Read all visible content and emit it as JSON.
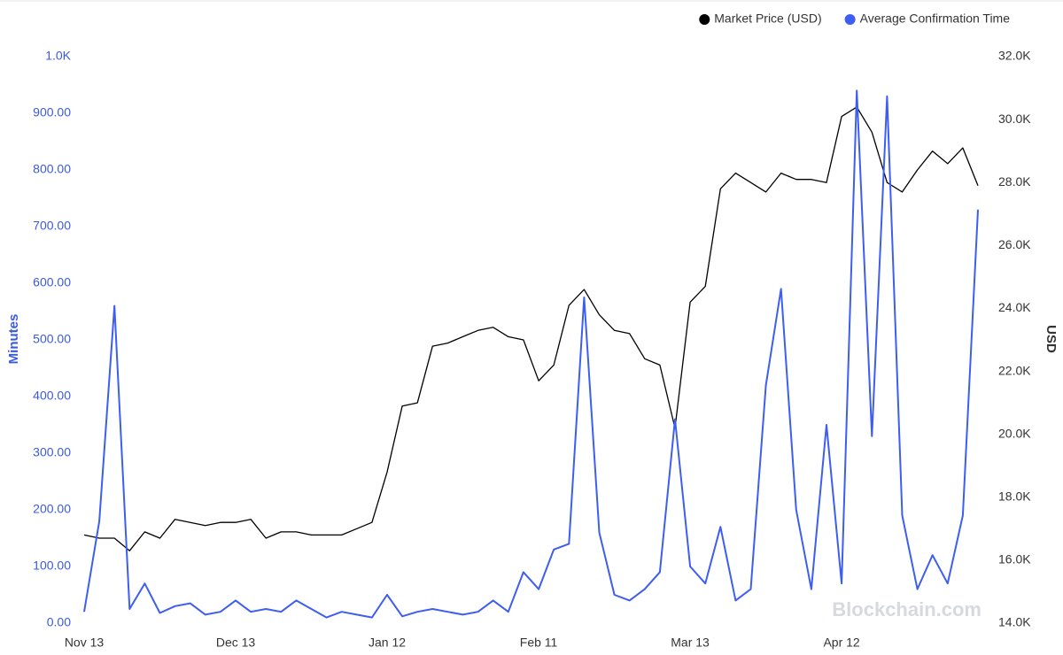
{
  "chart_data": {
    "type": "line",
    "legend": "top-right",
    "ylabel": "Minutes",
    "y2label": "USD",
    "watermark": "Blockchain.com",
    "categories": [
      "Nov 13",
      null,
      null,
      null,
      null,
      null,
      null,
      null,
      null,
      null,
      "Dec 13",
      null,
      null,
      null,
      null,
      null,
      null,
      null,
      null,
      null,
      "Jan 12",
      null,
      null,
      null,
      null,
      null,
      null,
      null,
      null,
      null,
      "Feb 11",
      null,
      null,
      null,
      null,
      null,
      null,
      null,
      null,
      null,
      "Mar 13",
      null,
      null,
      null,
      null,
      null,
      null,
      null,
      null,
      null,
      "Apr 12",
      null,
      null,
      null,
      null,
      null,
      null,
      null,
      null,
      null
    ],
    "ylim": [
      0,
      1000
    ],
    "yticks": [
      {
        "value": 0,
        "label": "0.00"
      },
      {
        "value": 100,
        "label": "100.00"
      },
      {
        "value": 200,
        "label": "200.00"
      },
      {
        "value": 300,
        "label": "300.00"
      },
      {
        "value": 400,
        "label": "400.00"
      },
      {
        "value": 500,
        "label": "500.00"
      },
      {
        "value": 600,
        "label": "600.00"
      },
      {
        "value": 700,
        "label": "700.00"
      },
      {
        "value": 800,
        "label": "800.00"
      },
      {
        "value": 900,
        "label": "900.00"
      },
      {
        "value": 1000,
        "label": "1.0K"
      }
    ],
    "y2lim": [
      14000,
      32000
    ],
    "y2ticks": [
      {
        "value": 14000,
        "label": "14.0K"
      },
      {
        "value": 16000,
        "label": "16.0K"
      },
      {
        "value": 18000,
        "label": "18.0K"
      },
      {
        "value": 20000,
        "label": "20.0K"
      },
      {
        "value": 22000,
        "label": "22.0K"
      },
      {
        "value": 24000,
        "label": "24.0K"
      },
      {
        "value": 26000,
        "label": "26.0K"
      },
      {
        "value": 28000,
        "label": "28.0K"
      },
      {
        "value": 30000,
        "label": "30.0K"
      },
      {
        "value": 32000,
        "label": "32.0K"
      }
    ],
    "series": [
      {
        "name": "Market Price (USD)",
        "color": "#000000",
        "axis": "y2",
        "values": [
          16800,
          16700,
          16700,
          16300,
          16900,
          16700,
          17300,
          17200,
          17100,
          17200,
          17200,
          17300,
          16700,
          16900,
          16900,
          16800,
          16800,
          16800,
          17000,
          17200,
          18800,
          20900,
          21000,
          22800,
          22900,
          23100,
          23300,
          23400,
          23100,
          23000,
          21700,
          22200,
          24100,
          24600,
          23800,
          23300,
          23200,
          22400,
          22200,
          20200,
          24200,
          24700,
          27800,
          28300,
          28000,
          27700,
          28300,
          28100,
          28100,
          28000,
          30100,
          30400,
          29600,
          28000,
          27700,
          28400,
          29000,
          28600,
          29100,
          27900
        ]
      },
      {
        "name": "Average Confirmation Time",
        "color": "#3d5ef0",
        "axis": "y",
        "values": [
          20,
          180,
          560,
          25,
          70,
          18,
          30,
          35,
          15,
          20,
          40,
          20,
          25,
          20,
          40,
          25,
          10,
          20,
          15,
          10,
          50,
          12,
          20,
          25,
          20,
          15,
          20,
          40,
          20,
          90,
          60,
          130,
          140,
          575,
          160,
          50,
          40,
          60,
          90,
          360,
          100,
          70,
          170,
          40,
          60,
          420,
          590,
          200,
          60,
          350,
          70,
          940,
          330,
          930,
          190,
          60,
          120,
          70,
          190,
          730
        ]
      }
    ]
  }
}
